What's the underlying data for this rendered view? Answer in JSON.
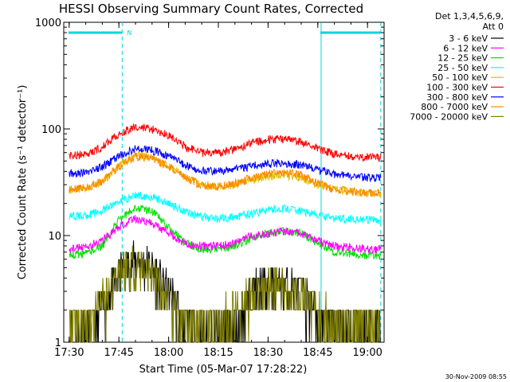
{
  "chart_data": {
    "type": "line",
    "title": "HESSI Observing Summary Count Rates, Corrected",
    "xlabel": "Start Time (05-Mar-07 17:28:22)",
    "ylabel": "Corrected Count Rate (s⁻¹ detector⁻¹)",
    "yscale": "log",
    "ylim": [
      1,
      1000
    ],
    "xlim": [
      "17:28:22",
      "19:05:00"
    ],
    "x_ticks": [
      "17:30",
      "17:45",
      "18:00",
      "18:15",
      "18:30",
      "18:45",
      "19:00"
    ],
    "y_ticks": [
      "1",
      "10",
      "100",
      "1000"
    ],
    "grid": false,
    "legend_header": [
      "Det 1,3,4,5,6,9,",
      "Att 0"
    ],
    "legend_placement": "right",
    "footer": "30-Nov-2009 08:55",
    "annotations": [
      {
        "text": "N",
        "at": "17:46"
      }
    ],
    "events": {
      "night_markers": [
        "17:46",
        "18:46",
        "19:04"
      ],
      "solid_markers": [
        "18:46"
      ],
      "bars_at_top": [
        [
          "17:30",
          "17:46"
        ],
        [
          "18:46",
          "19:04"
        ]
      ]
    },
    "x": [
      "17:30",
      "17:35",
      "17:40",
      "17:45",
      "17:50",
      "17:55",
      "18:00",
      "18:05",
      "18:10",
      "18:15",
      "18:20",
      "18:25",
      "18:30",
      "18:35",
      "18:40",
      "18:45",
      "18:50",
      "18:55",
      "19:00",
      "19:04"
    ],
    "series": [
      {
        "name": "3 - 6 keV",
        "color": "#000000",
        "values": [
          1.2,
          1.3,
          2.0,
          4.5,
          6.0,
          5.0,
          3.0,
          1.5,
          1.2,
          1.2,
          1.5,
          3.0,
          3.5,
          3.5,
          3.0,
          1.8,
          1.3,
          1.3,
          1.2,
          1.2
        ]
      },
      {
        "name": "6 - 12 keV",
        "color": "#ff00ff",
        "values": [
          7.5,
          7.8,
          9.0,
          12.0,
          14.5,
          13.0,
          10.5,
          8.5,
          8.0,
          8.0,
          8.5,
          10.0,
          10.5,
          11.0,
          10.5,
          9.0,
          8.0,
          7.8,
          7.5,
          7.5
        ]
      },
      {
        "name": "12 - 25 keV",
        "color": "#00e000",
        "values": [
          6.5,
          6.8,
          8.0,
          14.0,
          18.5,
          17.0,
          12.0,
          8.5,
          7.5,
          7.5,
          8.0,
          9.5,
          10.5,
          11.0,
          10.5,
          8.5,
          7.0,
          6.8,
          6.5,
          6.5
        ]
      },
      {
        "name": "25 - 50 keV",
        "color": "#00ffff",
        "values": [
          15.0,
          15.5,
          17.0,
          21.0,
          24.0,
          23.0,
          20.0,
          17.0,
          15.0,
          14.5,
          15.0,
          16.0,
          17.5,
          18.0,
          17.0,
          15.5,
          14.5,
          14.5,
          14.0,
          14.0
        ]
      },
      {
        "name": "50 - 100 keV",
        "color": "#e0c000",
        "values": [
          27.0,
          28.0,
          32.0,
          45.0,
          58.0,
          55.0,
          45.0,
          35.0,
          30.0,
          29.0,
          30.0,
          33.0,
          36.0,
          37.0,
          35.0,
          30.0,
          27.0,
          26.0,
          25.0,
          25.0
        ]
      },
      {
        "name": "100 - 300 keV",
        "color": "#ff0000",
        "values": [
          56.0,
          58.0,
          68.0,
          90.0,
          105.0,
          100.0,
          88.0,
          68.0,
          60.0,
          60.0,
          64.0,
          74.0,
          80.0,
          80.0,
          76.0,
          66.0,
          58.0,
          55.0,
          54.0,
          54.0
        ]
      },
      {
        "name": "300 - 800 keV",
        "color": "#0000ff",
        "values": [
          38.0,
          39.0,
          44.0,
          56.0,
          65.0,
          63.0,
          56.0,
          46.0,
          41.0,
          40.0,
          42.0,
          45.0,
          47.0,
          48.0,
          46.0,
          42.0,
          38.0,
          36.0,
          35.0,
          35.0
        ]
      },
      {
        "name": "800 - 7000 keV",
        "color": "#ff8800",
        "values": [
          27.0,
          28.0,
          32.0,
          44.0,
          55.0,
          53.0,
          44.0,
          35.0,
          30.0,
          29.0,
          31.0,
          35.0,
          38.0,
          39.0,
          37.0,
          31.0,
          27.0,
          26.0,
          25.0,
          25.0
        ]
      },
      {
        "name": "7000 - 20000 keV",
        "color": "#808000",
        "values": [
          1.5,
          1.6,
          2.5,
          5.0,
          5.5,
          4.5,
          2.5,
          1.5,
          1.5,
          1.6,
          2.0,
          2.8,
          3.3,
          3.3,
          3.0,
          1.8,
          1.6,
          1.5,
          1.5,
          1.5
        ]
      }
    ]
  }
}
